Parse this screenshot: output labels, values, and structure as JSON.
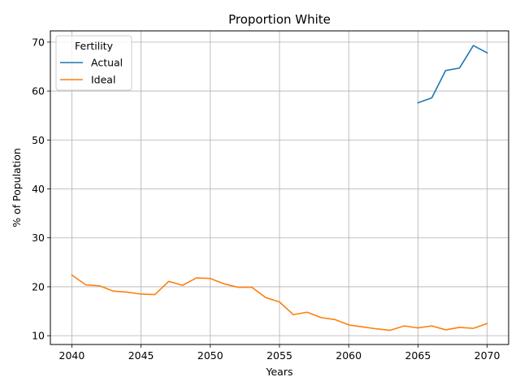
{
  "chart_data": {
    "type": "line",
    "title": "Proportion White",
    "xlabel": "Years",
    "ylabel": "% of Population",
    "xlim": [
      2038.45,
      2071.55
    ],
    "ylim": [
      8.2,
      72.3
    ],
    "xticks": [
      2040,
      2045,
      2050,
      2055,
      2060,
      2065,
      2070
    ],
    "yticks": [
      10,
      20,
      30,
      40,
      50,
      60,
      70
    ],
    "grid": true,
    "legend": {
      "title": "Fertility",
      "placement": "upper-left"
    },
    "series": [
      {
        "name": "Actual",
        "color": "#1f77b4",
        "x": [
          2065,
          2066,
          2067,
          2068,
          2069,
          2070
        ],
        "y": [
          57.6,
          58.6,
          64.2,
          64.7,
          69.3,
          67.8
        ]
      },
      {
        "name": "Ideal",
        "color": "#ff7f0e",
        "x": [
          2040,
          2041,
          2042,
          2043,
          2044,
          2045,
          2046,
          2047,
          2048,
          2049,
          2050,
          2051,
          2052,
          2053,
          2054,
          2055,
          2056,
          2057,
          2058,
          2059,
          2060,
          2061,
          2062,
          2063,
          2064,
          2065,
          2066,
          2067,
          2068,
          2069,
          2070
        ],
        "y": [
          22.4,
          20.4,
          20.2,
          19.1,
          18.9,
          18.5,
          18.4,
          21.1,
          20.3,
          21.8,
          21.7,
          20.6,
          19.9,
          19.9,
          17.8,
          16.9,
          14.3,
          14.8,
          13.7,
          13.3,
          12.2,
          11.8,
          11.4,
          11.1,
          12.0,
          11.6,
          12.0,
          11.2,
          11.7,
          11.5,
          12.5
        ]
      }
    ]
  }
}
